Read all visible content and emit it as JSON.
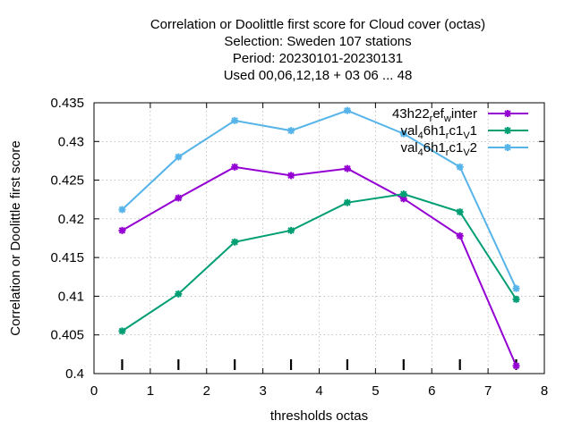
{
  "chart_data": {
    "type": "line",
    "title_lines": [
      "Correlation or Doolittle first score  for Cloud cover (octas)",
      "Selection: Sweden    107 stations",
      "Period: 20230101-20230131",
      "Used  00,06,12,18  + 03 06 ... 48"
    ],
    "xlabel": "thresholds octas",
    "ylabel": "Correlation or Doolittle first score",
    "xlim": [
      0,
      8
    ],
    "ylim": [
      0.4,
      0.435
    ],
    "x_ticks": [
      "0",
      "1",
      "2",
      "3",
      "4",
      "5",
      "6",
      "7",
      "8"
    ],
    "y_ticks": [
      "0.4",
      "0.405",
      "0.41",
      "0.415",
      "0.42",
      "0.425",
      "0.43",
      "0.435"
    ],
    "grid": true,
    "legend_position": "top-right",
    "x": [
      0.5,
      1.5,
      2.5,
      3.5,
      4.5,
      5.5,
      6.5,
      7.5
    ],
    "series": [
      {
        "name": "43h22_ref_winter",
        "legend": {
          "base": "43h22",
          "sub1": "r",
          "mid": "ef",
          "sub2": "w",
          "tail": "inter"
        },
        "color": "#9400d3",
        "values": [
          0.4185,
          0.4227,
          0.4267,
          0.4256,
          0.4265,
          0.4226,
          0.4178,
          0.401
        ]
      },
      {
        "name": "val_46h1_rc1_v1",
        "legend": {
          "base": "val",
          "sub1": "4",
          "mid": "6h1",
          "sub2": "r",
          "mid2": "c1",
          "sub3": "V",
          "tail": "1"
        },
        "color": "#009e73",
        "values": [
          0.4055,
          0.4103,
          0.417,
          0.4185,
          0.4221,
          0.4232,
          0.4209,
          0.4096
        ]
      },
      {
        "name": "val_46h1_rc1_v2",
        "legend": {
          "base": "val",
          "sub1": "4",
          "mid": "6h1",
          "sub2": "r",
          "mid2": "c1",
          "sub3": "V",
          "tail": "2"
        },
        "color": "#56b4e9",
        "values": [
          0.4212,
          0.428,
          0.4327,
          0.4314,
          0.434,
          0.431,
          0.4267,
          0.411
        ]
      }
    ]
  }
}
